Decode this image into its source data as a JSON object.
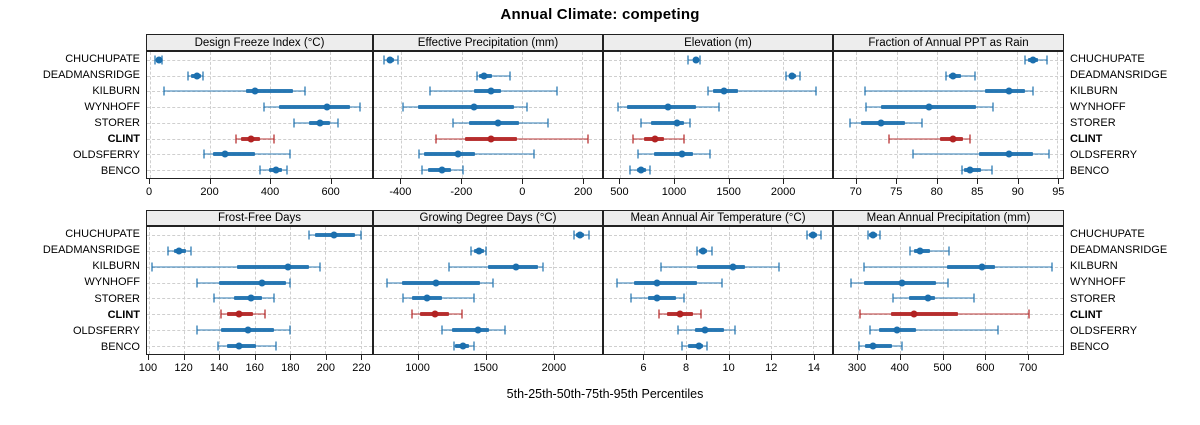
{
  "title": "Annual Climate: competing",
  "xlabel": "5th-25th-50th-75th-95th Percentiles",
  "percentile_legend": [
    "5th",
    "25th",
    "50th",
    "75th",
    "95th"
  ],
  "colors": {
    "series": "#1b6fae",
    "highlight": "#b22222",
    "strip_bg": "#ededed",
    "panel_border": "#222222",
    "grid": "#cfcfcf",
    "text": "#000000"
  },
  "chart_data": {
    "type": "dot-interval",
    "note": "Each row shows [5th,25th,50th,75th,95th] percentile values per station; CLINT is highlighted in red.",
    "stations": [
      "CHUCHUPATE",
      "DEADMANSRIDGE",
      "KILBURN",
      "WYNHOFF",
      "STORER",
      "CLINT",
      "OLDSFERRY",
      "BENCO"
    ],
    "highlight": "CLINT",
    "panels": [
      {
        "title": "Design Freeze Index (°C)",
        "grid_row": 0,
        "grid_col": 0,
        "xlim": [
          -10,
          740
        ],
        "ticks": [
          0,
          200,
          400,
          600
        ],
        "values": [
          [
            15,
            25,
            30,
            35,
            40
          ],
          [
            125,
            135,
            155,
            170,
            178
          ],
          [
            45,
            320,
            350,
            475,
            515
          ],
          [
            380,
            430,
            590,
            665,
            700
          ],
          [
            480,
            530,
            565,
            600,
            625
          ],
          [
            288,
            302,
            335,
            368,
            412
          ],
          [
            180,
            210,
            250,
            350,
            465
          ],
          [
            365,
            398,
            420,
            440,
            456
          ]
        ]
      },
      {
        "title": "Effective Precipitation (mm)",
        "grid_row": 0,
        "grid_col": 1,
        "xlim": [
          -490,
          265
        ],
        "ticks": [
          -400,
          -200,
          0,
          200
        ],
        "values": [
          [
            -458,
            -448,
            -437,
            -425,
            -409
          ],
          [
            -150,
            -142,
            -126,
            -100,
            -40
          ],
          [
            -305,
            -160,
            -102,
            -70,
            115
          ],
          [
            -395,
            -345,
            -160,
            -25,
            15
          ],
          [
            -230,
            -175,
            -80,
            -10,
            85
          ],
          [
            -285,
            -190,
            -102,
            -15,
            220
          ],
          [
            -340,
            -325,
            -213,
            -155,
            40
          ],
          [
            -330,
            -310,
            -265,
            -235,
            -195
          ]
        ]
      },
      {
        "title": "Elevation (m)",
        "grid_row": 0,
        "grid_col": 2,
        "xlim": [
          349,
          2457
        ],
        "ticks": [
          500,
          1000,
          1500,
          2000
        ],
        "values": [
          [
            1130,
            1170,
            1200,
            1220,
            1235
          ],
          [
            2030,
            2060,
            2090,
            2125,
            2160
          ],
          [
            1310,
            1355,
            1460,
            1590,
            2310
          ],
          [
            480,
            560,
            945,
            1200,
            1410
          ],
          [
            695,
            785,
            1020,
            1085,
            1140
          ],
          [
            615,
            720,
            825,
            905,
            1085
          ],
          [
            665,
            815,
            1070,
            1175,
            1325
          ],
          [
            590,
            650,
            695,
            740,
            770
          ]
        ]
      },
      {
        "title": "Fraction of Annual PPT as Rain",
        "grid_row": 0,
        "grid_col": 3,
        "xlim": [
          67.2,
          95.7
        ],
        "ticks": [
          70,
          75,
          80,
          85,
          90,
          95
        ],
        "values": [
          [
            91,
            91.4,
            92,
            92.6,
            93.7
          ],
          [
            81.2,
            81.5,
            82,
            83,
            84.8
          ],
          [
            71,
            86,
            89,
            91,
            92
          ],
          [
            71.2,
            73,
            79,
            84.9,
            87
          ],
          [
            69.2,
            70.5,
            73,
            76,
            78.2
          ],
          [
            74,
            80.4,
            82,
            83.3,
            84.1
          ],
          [
            77,
            85.3,
            89,
            92,
            94
          ],
          [
            83.1,
            83.4,
            84.1,
            85.5,
            86.9
          ]
        ]
      },
      {
        "title": "Frost-Free Days",
        "grid_row": 1,
        "grid_col": 0,
        "xlim": [
          98.9,
          226.5
        ],
        "ticks": [
          100,
          120,
          140,
          160,
          180,
          200,
          220
        ],
        "values": [
          [
            191,
            194,
            205,
            217,
            220
          ],
          [
            111,
            114,
            117,
            121,
            124
          ],
          [
            102,
            150,
            179,
            191,
            197
          ],
          [
            127,
            140,
            164,
            178,
            180
          ],
          [
            137,
            148,
            158,
            164,
            171
          ],
          [
            141,
            144,
            151,
            159,
            166
          ],
          [
            127,
            141,
            156,
            171,
            180
          ],
          [
            139,
            144,
            151,
            161,
            172
          ]
        ]
      },
      {
        "title": "Growing Degree Days (°C)",
        "grid_row": 1,
        "grid_col": 1,
        "xlim": [
          673,
          2360
        ],
        "ticks": [
          1000,
          1500,
          2000
        ],
        "values": [
          [
            2150,
            2170,
            2195,
            2230,
            2265
          ],
          [
            1393,
            1410,
            1452,
            1484,
            1501
          ],
          [
            1230,
            1520,
            1722,
            1890,
            1926
          ],
          [
            767,
            882,
            1133,
            1459,
            1550
          ],
          [
            887,
            956,
            1066,
            1175,
            1415
          ],
          [
            951,
            1017,
            1128,
            1226,
            1324
          ],
          [
            1177,
            1251,
            1440,
            1521,
            1644
          ],
          [
            1263,
            1275,
            1329,
            1373,
            1415
          ]
        ]
      },
      {
        "title": "Mean Annual Air Temperature (°C)",
        "grid_row": 1,
        "grid_col": 2,
        "xlim": [
          4.1,
          14.9
        ],
        "ticks": [
          6,
          8,
          10,
          12,
          14
        ],
        "values": [
          [
            13.7,
            13.8,
            14.0,
            14.2,
            14.4
          ],
          [
            8.5,
            8.6,
            8.8,
            9.0,
            9.2
          ],
          [
            6.8,
            8.5,
            10.2,
            10.8,
            12.4
          ],
          [
            4.7,
            5.5,
            6.6,
            8.5,
            9.7
          ],
          [
            5.4,
            6.2,
            6.6,
            7.5,
            7.9
          ],
          [
            6.7,
            7.1,
            7.7,
            8.3,
            8.7
          ],
          [
            7.6,
            8.4,
            8.9,
            9.8,
            10.3
          ],
          [
            7.8,
            8.1,
            8.6,
            8.8,
            9.0
          ]
        ]
      },
      {
        "title": "Mean Annual Precipitation (mm)",
        "grid_row": 1,
        "grid_col": 3,
        "xlim": [
          244,
          784
        ],
        "ticks": [
          300,
          400,
          500,
          600,
          700
        ],
        "values": [
          [
            323,
            327,
            337,
            345,
            353
          ],
          [
            424,
            432,
            447,
            470,
            515
          ],
          [
            314,
            510,
            592,
            623,
            759
          ],
          [
            285,
            315,
            405,
            485,
            513
          ],
          [
            383,
            420,
            465,
            482,
            575
          ],
          [
            306,
            378,
            432,
            536,
            703
          ],
          [
            329,
            350,
            393,
            437,
            631
          ],
          [
            302,
            316,
            337,
            381,
            405
          ]
        ]
      }
    ]
  }
}
